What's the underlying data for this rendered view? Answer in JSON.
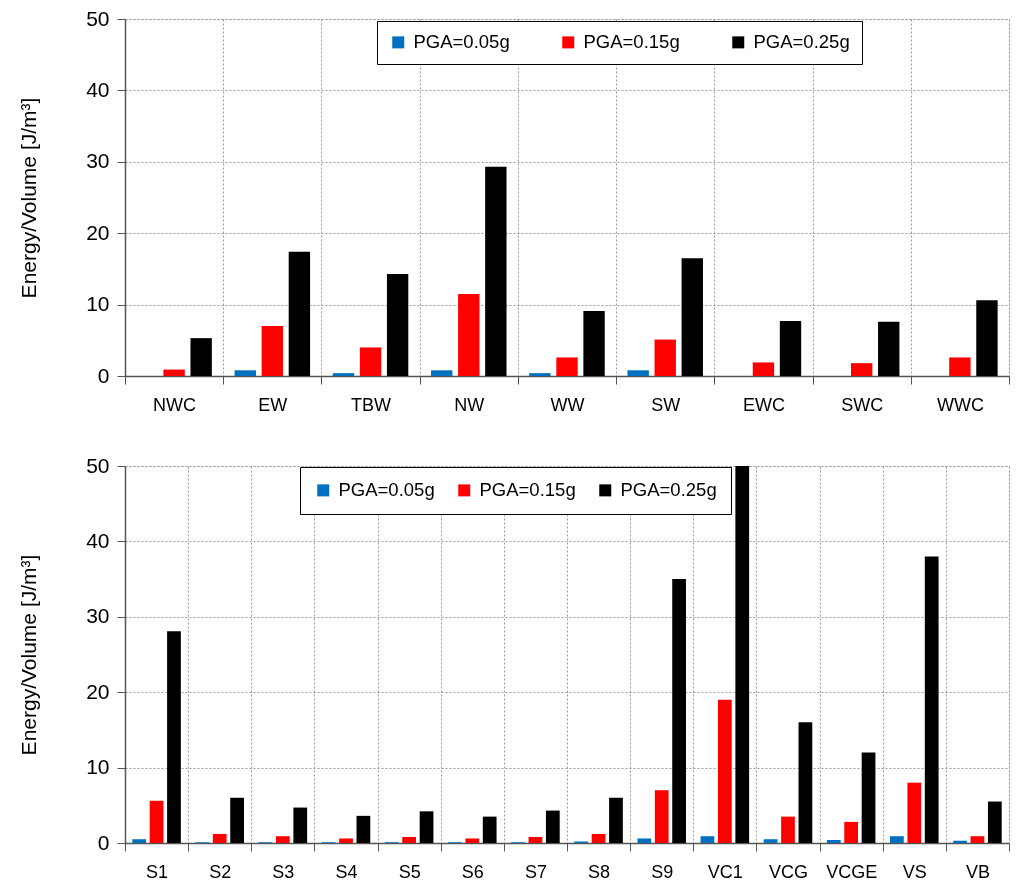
{
  "chart_data": [
    {
      "type": "bar",
      "ylabel": "Energy/Volume [J/m³]",
      "categories": [
        "NWC",
        "EW",
        "TBW",
        "NW",
        "WW",
        "SW",
        "EWC",
        "SWC",
        "WWC"
      ],
      "series": [
        {
          "name": "PGA=0.05g",
          "color": "#0070c0",
          "values": [
            null,
            0.8,
            0.4,
            0.8,
            0.4,
            0.8,
            null,
            null,
            null
          ]
        },
        {
          "name": "PGA=0.15g",
          "color": "#ff0000",
          "values": [
            0.9,
            7.0,
            4.0,
            11.5,
            2.6,
            5.1,
            1.9,
            1.8,
            2.6
          ]
        },
        {
          "name": "PGA=0.25g",
          "color": "#000000",
          "values": [
            5.3,
            17.4,
            14.3,
            29.3,
            9.1,
            16.5,
            7.7,
            7.6,
            10.6
          ]
        }
      ],
      "ylim": [
        0,
        50
      ],
      "yticks": [
        0,
        10,
        20,
        30,
        40,
        50
      ],
      "grid": true,
      "legend": "top"
    },
    {
      "type": "bar",
      "ylabel": "Energy/Volume [J/m³]",
      "categories": [
        "S1",
        "S2",
        "S3",
        "S4",
        "S5",
        "S6",
        "S7",
        "S8",
        "S9",
        "VC1",
        "VCG",
        "VCGE",
        "VS",
        "VB"
      ],
      "series": [
        {
          "name": "PGA=0.05g",
          "color": "#0070c0",
          "values": [
            0.5,
            0.1,
            0.1,
            0.1,
            0.1,
            0.1,
            0.1,
            0.2,
            0.6,
            0.9,
            0.5,
            0.4,
            0.9,
            0.3
          ]
        },
        {
          "name": "PGA=0.15g",
          "color": "#ff0000",
          "values": [
            5.6,
            1.2,
            0.9,
            0.6,
            0.8,
            0.6,
            0.8,
            1.2,
            7.0,
            19,
            3.5,
            2.8,
            8.0,
            0.9
          ]
        },
        {
          "name": "PGA=0.25g",
          "color": "#000000",
          "values": [
            28.1,
            6.0,
            4.7,
            3.6,
            4.2,
            3.5,
            4.3,
            6.0,
            35,
            50,
            16,
            12,
            38,
            5.5
          ]
        }
      ],
      "ylim": [
        0,
        50
      ],
      "yticks": [
        0,
        10,
        20,
        30,
        40,
        50
      ],
      "grid": true,
      "legend": "top"
    }
  ]
}
